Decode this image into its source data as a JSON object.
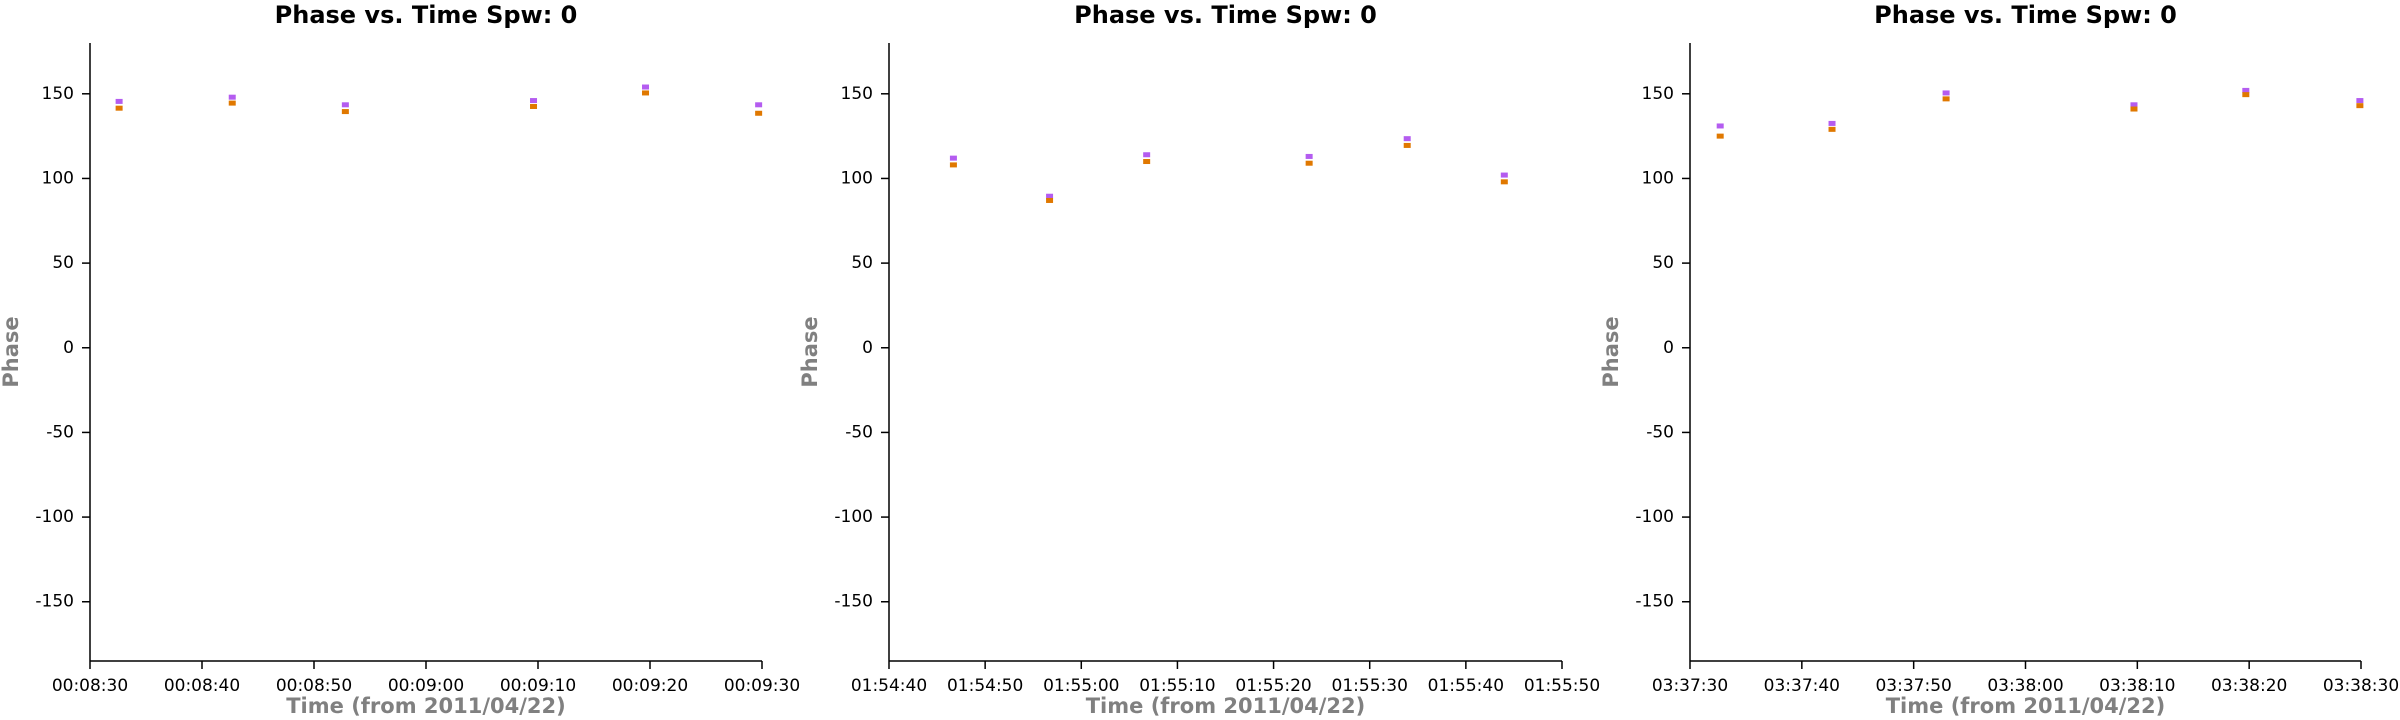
{
  "chart_data": [
    {
      "type": "scatter",
      "title": "Phase vs. Time Spw: 0",
      "xlabel": "Time (from 2011/04/22)",
      "ylabel": "Phase",
      "x": [
        512.6,
        522.7,
        532.8,
        549.6,
        559.6,
        569.7
      ],
      "series": [
        {
          "color": "#b45cf0",
          "values": [
            145.5,
            148,
            143.5,
            146,
            154,
            143.5
          ]
        },
        {
          "color": "#e07800",
          "values": [
            141.5,
            144.5,
            139.5,
            142.5,
            150.5,
            138.5
          ]
        }
      ],
      "xlim": [
        510,
        570
      ],
      "xticks": [
        {
          "value": 510,
          "label": "00:08:30"
        },
        {
          "value": 520,
          "label": "00:08:40"
        },
        {
          "value": 530,
          "label": "00:08:50"
        },
        {
          "value": 540,
          "label": "00:09:00"
        },
        {
          "value": 550,
          "label": "00:09:10"
        },
        {
          "value": 560,
          "label": "00:09:20"
        },
        {
          "value": 570,
          "label": "00:09:30"
        }
      ],
      "ylim": [
        -185,
        180
      ],
      "yticks": [
        -150,
        -100,
        -50,
        0,
        50,
        100,
        150
      ]
    },
    {
      "type": "scatter",
      "title": "Phase vs. Time Spw: 0",
      "xlabel": "Time (from 2011/04/22)",
      "ylabel": "Phase",
      "x": [
        6886.7,
        6896.7,
        6906.8,
        6923.7,
        6933.9,
        6944
      ],
      "series": [
        {
          "color": "#b45cf0",
          "values": [
            112,
            89.5,
            114,
            113,
            123.5,
            102
          ]
        },
        {
          "color": "#e07800",
          "values": [
            108,
            87,
            110,
            109,
            119.5,
            98
          ]
        }
      ],
      "xlim": [
        6880,
        6950
      ],
      "xticks": [
        {
          "value": 6880,
          "label": "01:54:40"
        },
        {
          "value": 6890,
          "label": "01:54:50"
        },
        {
          "value": 6900,
          "label": "01:55:00"
        },
        {
          "value": 6910,
          "label": "01:55:10"
        },
        {
          "value": 6920,
          "label": "01:55:20"
        },
        {
          "value": 6930,
          "label": "01:55:30"
        },
        {
          "value": 6940,
          "label": "01:55:40"
        },
        {
          "value": 6950,
          "label": "01:55:50"
        }
      ],
      "ylim": [
        -185,
        180
      ],
      "yticks": [
        -150,
        -100,
        -50,
        0,
        50,
        100,
        150
      ]
    },
    {
      "type": "scatter",
      "title": "Phase vs. Time Spw: 0",
      "xlabel": "Time (from 2011/04/22)",
      "ylabel": "Phase",
      "x": [
        13052.7,
        13062.7,
        13072.9,
        13089.7,
        13099.7,
        13109.9
      ],
      "series": [
        {
          "color": "#b45cf0",
          "values": [
            131,
            132.5,
            150.5,
            143.5,
            152,
            146
          ]
        },
        {
          "color": "#e07800",
          "values": [
            125,
            129,
            147,
            141,
            149.5,
            143
          ]
        }
      ],
      "xlim": [
        13050,
        13110
      ],
      "xticks": [
        {
          "value": 13050,
          "label": "03:37:30"
        },
        {
          "value": 13060,
          "label": "03:37:40"
        },
        {
          "value": 13070,
          "label": "03:37:50"
        },
        {
          "value": 13080,
          "label": "03:38:00"
        },
        {
          "value": 13090,
          "label": "03:38:10"
        },
        {
          "value": 13100,
          "label": "03:38:20"
        },
        {
          "value": 13110,
          "label": "03:38:30"
        }
      ],
      "ylim": [
        -185,
        180
      ],
      "yticks": [
        -150,
        -100,
        -50,
        0,
        50,
        100,
        150
      ]
    }
  ]
}
